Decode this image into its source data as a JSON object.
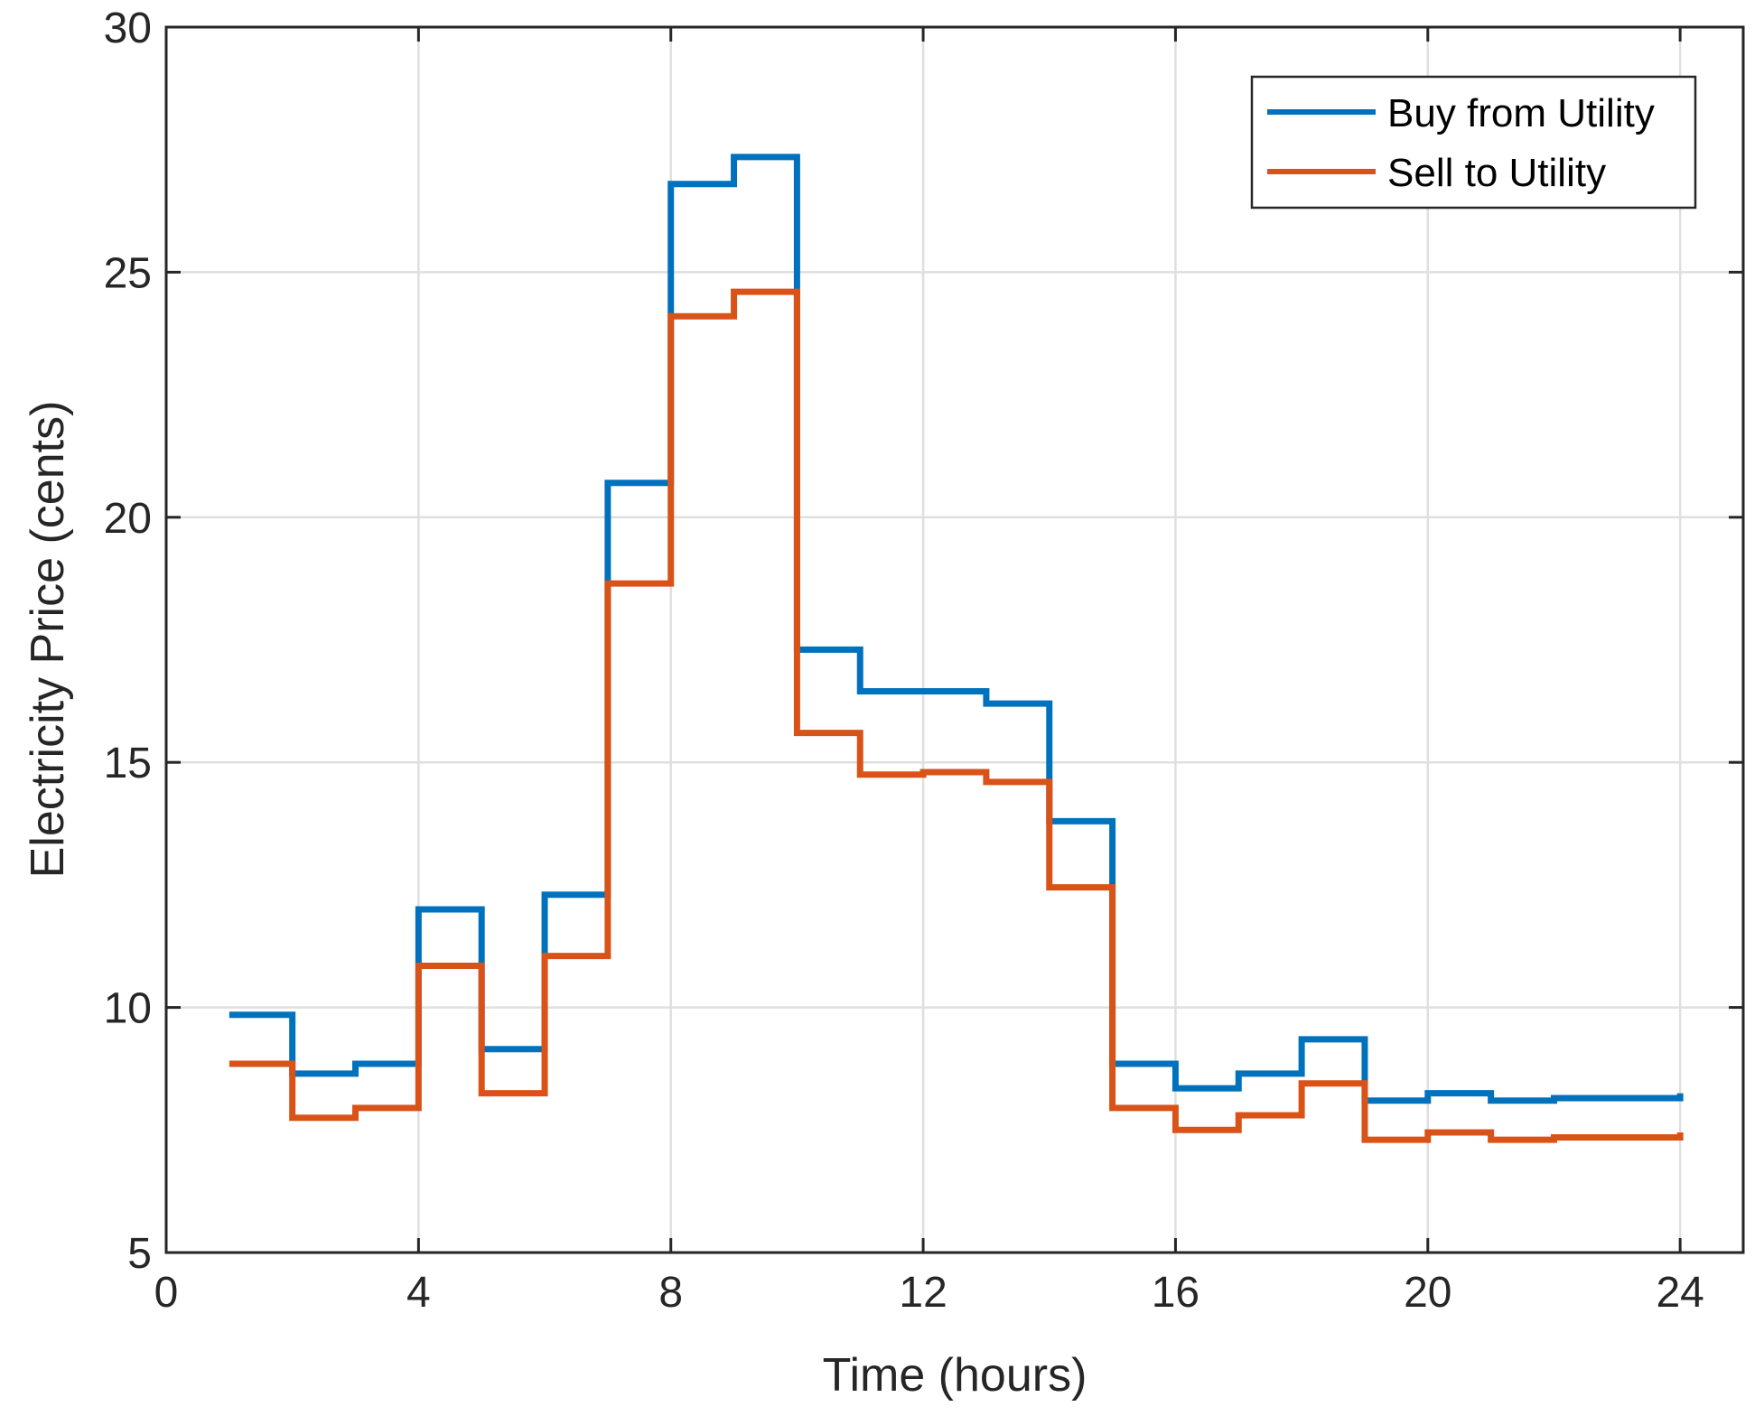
{
  "chart_data": {
    "type": "line",
    "step": "post",
    "title": "",
    "xlabel": "Time (hours)",
    "ylabel": "Electricity Price (cents)",
    "xlim": [
      0,
      25
    ],
    "ylim": [
      5,
      30
    ],
    "xticks": [
      0,
      4,
      8,
      12,
      16,
      20,
      24
    ],
    "yticks": [
      5,
      10,
      15,
      20,
      25,
      30
    ],
    "grid": true,
    "legend_position": "top-right",
    "x": [
      1,
      2,
      3,
      4,
      5,
      6,
      7,
      8,
      9,
      10,
      11,
      12,
      13,
      14,
      15,
      16,
      17,
      18,
      19,
      20,
      21,
      22,
      23,
      24
    ],
    "series": [
      {
        "name": "Buy from Utility",
        "color": "#0072BD",
        "values": [
          9.85,
          8.65,
          8.85,
          12.0,
          9.15,
          12.3,
          20.7,
          26.8,
          27.35,
          17.3,
          16.45,
          16.45,
          16.2,
          13.8,
          8.85,
          8.35,
          8.65,
          9.35,
          8.1,
          8.25,
          8.1,
          8.15,
          8.15,
          8.25
        ]
      },
      {
        "name": "Sell to Utility",
        "color": "#D95319",
        "values": [
          8.85,
          7.75,
          7.95,
          10.85,
          8.25,
          11.05,
          18.65,
          24.1,
          24.6,
          15.6,
          14.75,
          14.8,
          14.6,
          12.45,
          7.95,
          7.5,
          7.8,
          8.45,
          7.3,
          7.45,
          7.3,
          7.35,
          7.35,
          7.45
        ]
      }
    ]
  }
}
